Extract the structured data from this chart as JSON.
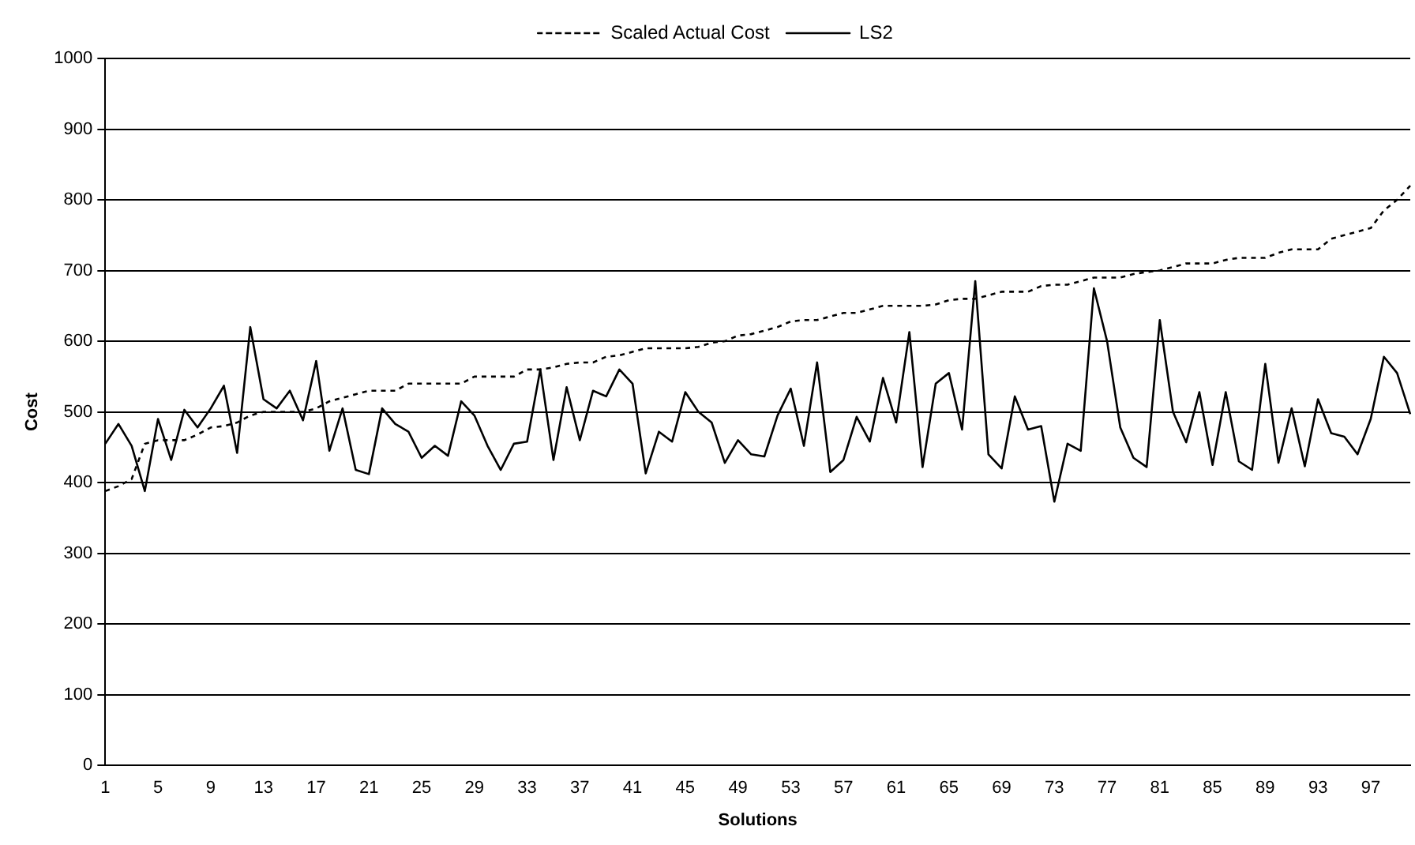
{
  "chart_data": {
    "type": "line",
    "xlabel": "Solutions",
    "ylabel": "Cost",
    "categories": [
      "1",
      null,
      null,
      null,
      "5",
      null,
      null,
      null,
      "9",
      null,
      null,
      null,
      "13",
      null,
      null,
      null,
      "17",
      null,
      null,
      null,
      "21",
      null,
      null,
      null,
      "25",
      null,
      null,
      null,
      "29",
      null,
      null,
      null,
      "33",
      null,
      null,
      null,
      "37",
      null,
      null,
      null,
      "41",
      null,
      null,
      null,
      "45",
      null,
      null,
      null,
      "49",
      null,
      null,
      null,
      "53",
      null,
      null,
      null,
      "57",
      null,
      null,
      null,
      "61",
      null,
      null,
      null,
      "65",
      null,
      null,
      null,
      "69",
      null,
      null,
      null,
      "73",
      null,
      null,
      null,
      "77",
      null,
      null,
      null,
      "81",
      null,
      null,
      null,
      "85",
      null,
      null,
      null,
      "89",
      null,
      null,
      null,
      "93",
      null,
      null,
      null,
      "97",
      null,
      null,
      null
    ],
    "series": [
      {
        "name": "Scaled Actual Cost",
        "color": "#000000",
        "line_style": "dotted",
        "values": [
          388,
          395,
          405,
          455,
          460,
          460,
          460,
          468,
          478,
          480,
          485,
          495,
          500,
          500,
          500,
          500,
          505,
          515,
          520,
          525,
          530,
          530,
          530,
          540,
          540,
          540,
          540,
          540,
          550,
          550,
          550,
          550,
          560,
          560,
          563,
          568,
          570,
          570,
          578,
          580,
          585,
          590,
          590,
          590,
          590,
          592,
          598,
          600,
          608,
          610,
          615,
          620,
          628,
          630,
          630,
          635,
          640,
          640,
          645,
          650,
          650,
          650,
          650,
          652,
          658,
          660,
          660,
          665,
          670,
          670,
          670,
          678,
          680,
          680,
          685,
          690,
          690,
          690,
          695,
          698,
          700,
          705,
          710,
          710,
          710,
          715,
          718,
          718,
          718,
          725,
          730,
          730,
          730,
          745,
          750,
          755,
          760,
          785,
          800,
          820
        ]
      },
      {
        "name": "LS2",
        "color": "#000000",
        "line_style": "solid",
        "values": [
          455,
          483,
          452,
          388,
          490,
          432,
          503,
          478,
          505,
          537,
          442,
          620,
          518,
          505,
          530,
          488,
          572,
          445,
          505,
          418,
          412,
          505,
          483,
          472,
          435,
          452,
          438,
          515,
          495,
          452,
          418,
          455,
          458,
          560,
          432,
          535,
          460,
          530,
          522,
          560,
          540,
          413,
          472,
          458,
          528,
          500,
          485,
          428,
          460,
          440,
          437,
          495,
          533,
          452,
          570,
          415,
          432,
          493,
          458,
          548,
          485,
          613,
          422,
          540,
          555,
          475,
          685,
          440,
          420,
          522,
          475,
          480,
          373,
          455,
          445,
          675,
          600,
          478,
          435,
          422,
          630,
          500,
          457,
          528,
          425,
          528,
          430,
          418,
          568,
          428,
          505,
          423,
          518,
          470,
          465,
          440,
          490,
          578,
          555,
          497
        ]
      }
    ],
    "ylim": [
      0,
      1000
    ],
    "yticks": [
      0,
      100,
      200,
      300,
      400,
      500,
      600,
      700,
      800,
      900,
      1000
    ],
    "grid": "y",
    "legend": "top",
    "marker": "none"
  }
}
